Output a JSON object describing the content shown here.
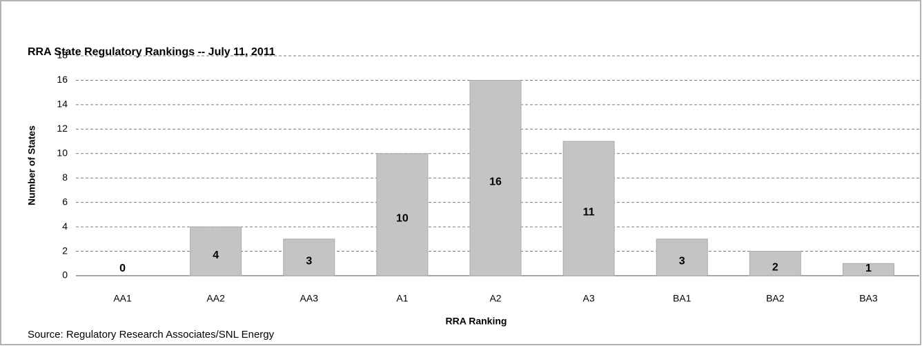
{
  "chart_data": {
    "type": "bar",
    "title": "RRA State Regulatory Rankings  -- July 11, 2011",
    "x_label": "RRA Ranking",
    "y_label": "Number of States",
    "source": "Source: Regulatory Research Associates/SNL Energy",
    "categories": [
      "AA1",
      "AA2",
      "AA3",
      "A1",
      "A2",
      "A3",
      "BA1",
      "BA2",
      "BA3"
    ],
    "values": [
      0,
      4,
      3,
      10,
      16,
      11,
      3,
      2,
      1
    ],
    "color": "#c4c4c4",
    "ylim": [
      0,
      18
    ],
    "yticks": [
      0,
      2,
      4,
      6,
      8,
      10,
      12,
      14,
      16,
      18
    ],
    "grid": true
  }
}
